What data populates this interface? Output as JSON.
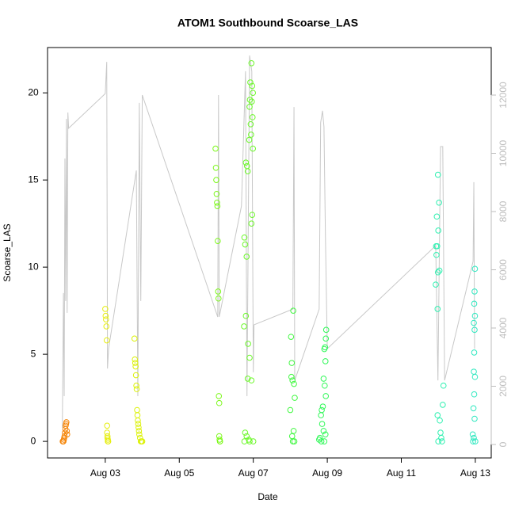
{
  "chart_data": {
    "type": "scatter",
    "title": "ATOM1 Southbound Scoarse_LAS",
    "x_label": "Date",
    "y_label": "Scoarse_LAS",
    "xlim": [
      1.44,
      13.43
    ],
    "xticks": [
      {
        "value": 3,
        "label": "Aug 03"
      },
      {
        "value": 5,
        "label": "Aug 05"
      },
      {
        "value": 7,
        "label": "Aug 07"
      },
      {
        "value": 9,
        "label": "Aug 09"
      },
      {
        "value": 11,
        "label": "Aug 11"
      },
      {
        "value": 13,
        "label": "Aug 13"
      }
    ],
    "ylim": [
      -0.95,
      22.6
    ],
    "yticks": [
      0,
      5,
      10,
      15,
      20
    ],
    "y2lim": [
      -463,
      13633
    ],
    "y2ticks": [
      0,
      2000,
      4000,
      6000,
      8000,
      10000,
      12000
    ],
    "y2_color": "#bdbdbd",
    "series": [
      {
        "type": "line",
        "axis": "y2",
        "color": "#c8c8c8",
        "x": [
          1.84,
          1.87,
          1.89,
          1.91,
          1.93,
          1.95,
          1.97,
          1.99,
          2.01,
          3.0,
          3.04,
          3.06,
          3.09,
          3.84,
          3.88,
          3.92,
          3.96,
          4.0,
          6.04,
          6.06,
          6.08,
          6.68,
          6.79,
          6.83,
          6.9,
          6.96,
          7.0,
          7.02,
          8.07,
          8.1,
          8.12,
          8.78,
          8.82,
          8.87,
          8.91,
          8.95,
          9.0,
          11.93,
          11.99,
          12.06,
          12.12,
          12.17,
          12.94,
          12.96,
          12.98
        ],
        "values": [
          570,
          5200,
          1660,
          9820,
          4930,
          11180,
          4520,
          11400,
          10860,
          12050,
          13140,
          2610,
          3290,
          9410,
          1660,
          11730,
          4930,
          12000,
          4380,
          12000,
          4380,
          8190,
          12820,
          1660,
          13360,
          12820,
          2480,
          4110,
          4650,
          11590,
          2200,
          4650,
          11050,
          11460,
          10910,
          7100,
          3290,
          6830,
          2200,
          10230,
          10230,
          2200,
          6290,
          9010,
          3290
        ]
      },
      {
        "color": "#f5860a",
        "x": [
          1.85,
          1.86,
          1.87,
          1.88,
          1.89,
          1.9,
          1.91,
          1.92,
          1.93,
          1.94,
          1.95,
          1.96,
          1.97
        ],
        "values": [
          0,
          0,
          0,
          0.1,
          0.2,
          0.3,
          0.5,
          0.7,
          0.9,
          1.0,
          1.1,
          0.6,
          0.4
        ]
      },
      {
        "color": "#e6ee10",
        "x": [
          3.0,
          3.01,
          3.02,
          3.03,
          3.04,
          3.05,
          3.05,
          3.06,
          3.06,
          3.07,
          3.07,
          3.08
        ],
        "values": [
          7.6,
          7.2,
          7.0,
          6.6,
          5.8,
          0.9,
          0.5,
          0.3,
          0.2,
          0.1,
          0,
          0
        ]
      },
      {
        "color": "#dcf208",
        "x": [
          3.79,
          3.8,
          3.81,
          3.82,
          3.83,
          3.84,
          3.85,
          3.86,
          3.87,
          3.88,
          3.89,
          3.9,
          3.91,
          3.92,
          3.94,
          3.96,
          3.98,
          4.0
        ],
        "values": [
          5.9,
          4.7,
          4.5,
          4.3,
          3.8,
          3.2,
          3.0,
          1.8,
          1.5,
          1.2,
          1.0,
          0.8,
          0.6,
          0.4,
          0.2,
          0,
          0,
          0
        ]
      },
      {
        "color": "#7cf81a",
        "x": [
          5.98,
          5.99,
          6.0,
          6.01,
          6.02,
          6.03,
          6.04,
          6.05,
          6.06,
          6.07,
          6.08,
          6.08,
          6.09,
          6.1,
          6.1
        ],
        "values": [
          16.8,
          15.7,
          15.0,
          14.2,
          13.7,
          13.5,
          11.5,
          8.6,
          8.2,
          2.6,
          2.2,
          0.3,
          0.1,
          0,
          0
        ]
      },
      {
        "color": "#6cf82a",
        "x": [
          6.95,
          6.92,
          6.97,
          6.99,
          6.91,
          6.96,
          6.9,
          6.98,
          6.93,
          6.94,
          6.89,
          6.99,
          6.8,
          6.83,
          6.85,
          6.97,
          6.95,
          6.76,
          6.78,
          6.82,
          6.8,
          6.75,
          6.86,
          6.9,
          6.85,
          6.95,
          6.78,
          6.82,
          6.88,
          6.76,
          6.9,
          7.0
        ],
        "values": [
          21.7,
          20.6,
          20.4,
          20.0,
          19.6,
          19.5,
          19.2,
          18.6,
          18.2,
          17.6,
          17.3,
          16.8,
          16,
          15.8,
          15.5,
          13.0,
          12.5,
          11.7,
          11.3,
          10.6,
          7.2,
          6.6,
          5.6,
          4.8,
          3.6,
          3.5,
          0.5,
          0.3,
          0.1,
          0,
          0,
          0
        ]
      },
      {
        "color": "#40f840",
        "x": [
          8.08,
          8.02,
          8.04,
          8.03,
          8.06,
          8.1,
          8.12,
          8.0,
          8.09,
          8.05,
          8.07,
          8.11
        ],
        "values": [
          7.5,
          6.0,
          4.5,
          3.7,
          3.5,
          3.3,
          2.5,
          1.8,
          0.6,
          0.3,
          0,
          0
        ]
      },
      {
        "color": "#30f858",
        "x": [
          8.97,
          8.96,
          8.94,
          8.92,
          8.95,
          8.9,
          8.93,
          8.96,
          8.88,
          8.85,
          8.83,
          8.86,
          8.9,
          8.95,
          8.8,
          8.78,
          8.84,
          8.92
        ],
        "values": [
          6.4,
          5.9,
          5.4,
          5.3,
          4.6,
          3.6,
          3.2,
          2.6,
          2.0,
          1.8,
          1.5,
          1.0,
          0.6,
          0.4,
          0.2,
          0.1,
          0,
          0
        ]
      },
      {
        "color": "#2ef0b0",
        "x": [
          11.99,
          12.02,
          11.96,
          12.0,
          11.94,
          11.97,
          11.95,
          12.03,
          11.99,
          11.93,
          11.98,
          12.14,
          12.12,
          11.98,
          12.04,
          12.06,
          12.08,
          12.1,
          12.0
        ],
        "values": [
          15.3,
          13.7,
          12.9,
          12.1,
          11.2,
          11.2,
          10.7,
          9.8,
          9.7,
          9.0,
          7.6,
          3.2,
          2.1,
          1.5,
          1.2,
          0.5,
          0.2,
          0,
          0
        ]
      },
      {
        "color": "#30e8c0",
        "x": [
          12.99,
          12.98,
          12.97,
          12.99,
          12.96,
          12.98,
          12.97,
          12.96,
          12.99,
          12.97,
          12.95,
          12.98,
          12.93,
          12.96,
          12.94,
          13.0
        ],
        "values": [
          9.9,
          8.6,
          7.9,
          7.2,
          6.8,
          6.4,
          5.1,
          4.0,
          3.7,
          2.7,
          1.9,
          1.3,
          0.4,
          0.2,
          0,
          0
        ]
      }
    ]
  }
}
